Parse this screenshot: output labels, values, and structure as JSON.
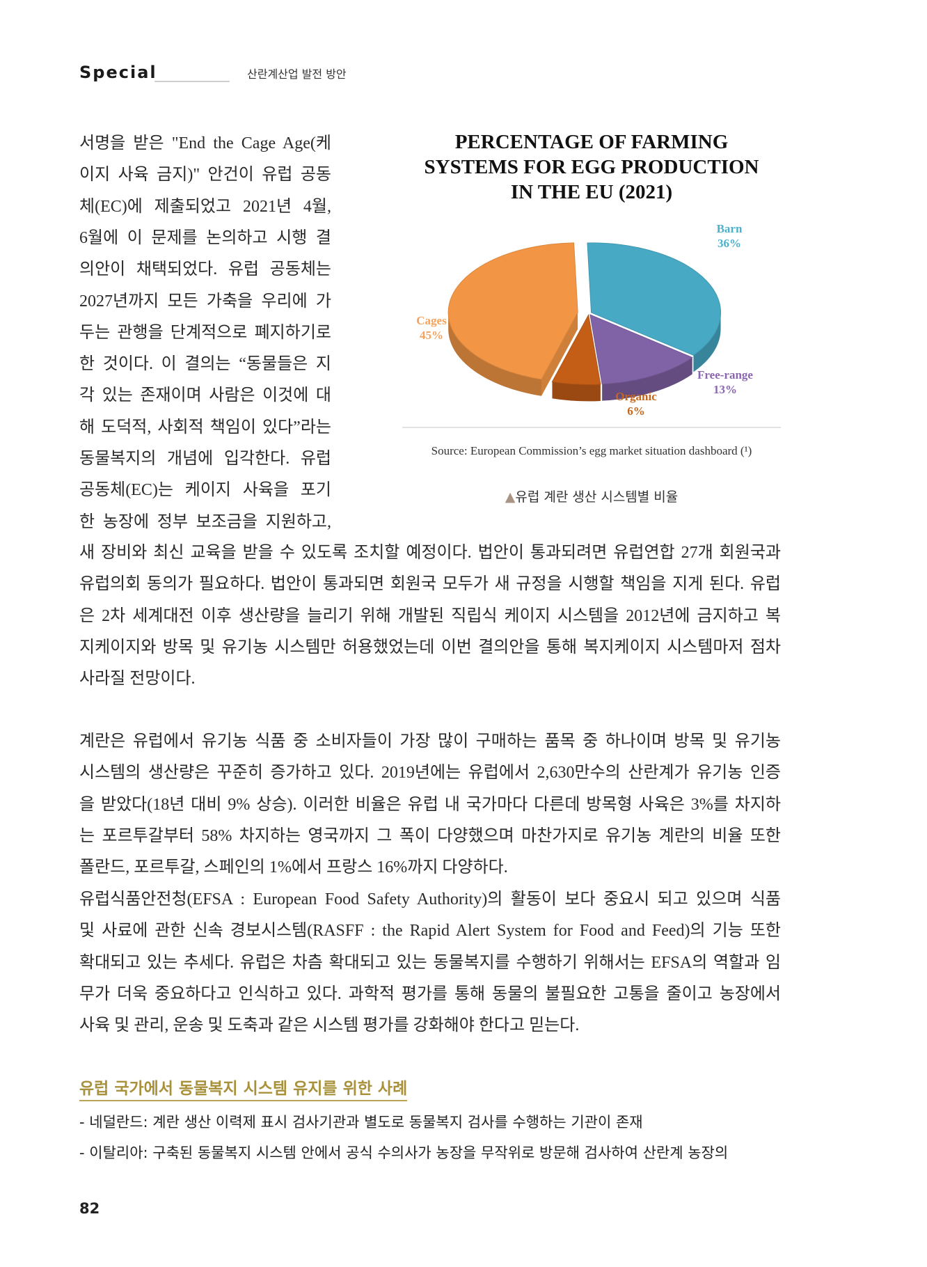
{
  "header": {
    "section": "Special",
    "title": "산란계산업 발전 방안"
  },
  "column_lines": [
    "서명을 받은 \"End the Cage Age(케",
    "이지 사육 금지)\" 안건이 유럽 공동",
    "체(EC)에 제출되었고 2021년 4월,",
    "6월에 이 문제를 논의하고 시행 결",
    "의안이 채택되었다. 유럽 공동체는",
    "2027년까지 모든 가축을 우리에 가",
    "두는 관행을 단계적으로 폐지하기로",
    "한 것이다. 이 결의는 “동물들은 지",
    "각 있는 존재이며 사람은 이것에 대",
    "해 도덕적, 사회적 책임이 있다”라는",
    "동물복지의 개념에 입각한다. 유럽",
    "공동체(EC)는 케이지 사육을 포기",
    "한 농장에 정부 보조금을 지원하고,"
  ],
  "paragraph1_lines": [
    "새 장비와 최신 교육을 받을 수 있도록 조치할 예정이다. 법안이 통과되려면 유럽연합 27개 회원국과",
    "유럽의회 동의가 필요하다. 법안이 통과되면 회원국 모두가 새 규정을 시행할 책임을 지게 된다. 유럽",
    "은 2차 세계대전 이후 생산량을 늘리기 위해 개발된 직립식 케이지 시스템을 2012년에 금지하고 복",
    "지케이지와 방목 및 유기농 시스템만 허용했었는데 이번 결의안을 통해 복지케이지 시스템마저 점차",
    "사라질 전망이다."
  ],
  "paragraph2_lines": [
    "계란은 유럽에서 유기농 식품 중 소비자들이 가장 많이 구매하는 품목 중 하나이며 방목 및 유기농",
    "시스템의 생산량은 꾸준히 증가하고 있다. 2019년에는 유럽에서 2,630만수의 산란계가 유기농 인증",
    "을 받았다(18년 대비 9% 상승). 이러한 비율은 유럽 내 국가마다 다른데 방목형 사육은 3%를 차지하",
    "는 포르투갈부터 58% 차지하는 영국까지 그 폭이 다양했으며 마찬가지로 유기농 계란의 비율 또한",
    "폴란드, 포르투갈, 스페인의 1%에서 프랑스 16%까지 다양하다."
  ],
  "paragraph3_lines": [
    "유럽식품안전청(EFSA : European Food Safety Authority)의 활동이 보다 중요시 되고 있으며 식품",
    "및 사료에 관한 신속 경보시스템(RASFF : the Rapid Alert System for Food and Feed)의 기능 또한",
    "확대되고 있는 추세다. 유럽은 차츰 확대되고 있는 동물복지를 수행하기 위해서는 EFSA의 역할과 임",
    "무가 더욱 중요하다고 인식하고 있다. 과학적 평가를 통해 동물의 불필요한 고통을 줄이고 농장에서",
    "사육 및 관리, 운송 및 도축과 같은 시스템 평가를 강화해야 한다고 믿는다."
  ],
  "cases": {
    "heading": "유럽 국가에서 동물복지 시스템 유지를 위한 사례",
    "items": [
      "- 네덜란드: 계란 생산 이력제 표시 검사기관과 별도로 동물복지 검사를 수행하는 기관이 존재",
      "- 이탈리아: 구축된 동물복지 시스템 안에서  공식 수의사가 농장을 무작위로 방문해 검사하여 산란계 농장의"
    ]
  },
  "page_number": "82",
  "figure": {
    "source": "Source: European Commission’s egg market situation dashboard (¹)",
    "caption": "유럽 계란 생산 시스템별 비율",
    "caption_icon": "triangle-up-icon"
  },
  "chart_data": {
    "type": "pie",
    "style": "3d-exploded",
    "title_lines": [
      "PERCENTAGE OF FARMING",
      "SYSTEMS FOR EGG PRODUCTION",
      "IN THE EU (2021)"
    ],
    "slices": [
      {
        "label": "Barn",
        "value_label": "36%",
        "value": 36,
        "color": "#48a9c5",
        "label_color": "#4db0cc"
      },
      {
        "label": "Free-range",
        "value_label": "13%",
        "value": 13,
        "color": "#8062a6",
        "label_color": "#8a66b2"
      },
      {
        "label": "Organic",
        "value_label": "6%",
        "value": 6,
        "color": "#c45e16",
        "label_color": "#c4671e"
      },
      {
        "label": "Cages",
        "value_label": "45%",
        "value": 45,
        "color": "#f29645",
        "label_color": "#f4a25c",
        "exploded": true
      }
    ],
    "legend": "none"
  }
}
